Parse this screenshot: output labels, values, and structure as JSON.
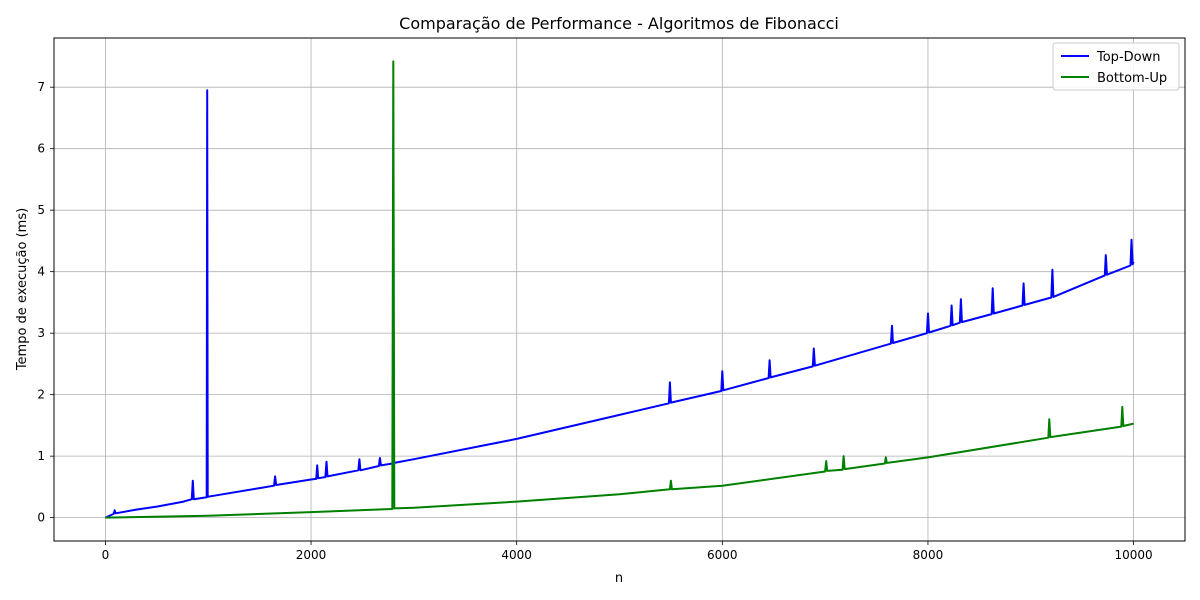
{
  "chart_data": {
    "type": "line",
    "title": "Comparação de Performance - Algoritmos de Fibonacci",
    "xlabel": "n",
    "ylabel": "Tempo de execução (ms)",
    "xlim": [
      -500,
      10500
    ],
    "ylim": [
      -0.38,
      7.8
    ],
    "x_ticks": [
      0,
      2000,
      4000,
      6000,
      8000,
      10000
    ],
    "x_tick_labels": [
      "0",
      "2000",
      "4000",
      "6000",
      "8000",
      "10000"
    ],
    "y_ticks": [
      0,
      1,
      2,
      3,
      4,
      5,
      6,
      7
    ],
    "y_tick_labels": [
      "0",
      "1",
      "2",
      "3",
      "4",
      "5",
      "6",
      "7"
    ],
    "grid": true,
    "legend_position": "top-right",
    "series": [
      {
        "name": "Top-Down",
        "color": "#0000ff",
        "x": [
          0,
          80,
          90,
          100,
          300,
          500,
          760,
          840,
          850,
          860,
          985,
          990,
          995,
          1000,
          1500,
          1640,
          1650,
          1660,
          2000,
          2050,
          2060,
          2070,
          2140,
          2150,
          2160,
          2460,
          2470,
          2480,
          2660,
          2670,
          2680,
          2790,
          2800,
          2810,
          3000,
          4000,
          5000,
          5480,
          5490,
          5500,
          5990,
          6000,
          6010,
          6450,
          6460,
          6470,
          6880,
          6890,
          6900,
          7640,
          7650,
          7660,
          7990,
          8000,
          8010,
          8220,
          8230,
          8240,
          8310,
          8320,
          8330,
          8620,
          8630,
          8640,
          8920,
          8930,
          8940,
          9200,
          9210,
          9220,
          9720,
          9730,
          9740,
          9970,
          9980,
          9990,
          10000
        ],
        "y": [
          0.0,
          0.06,
          0.12,
          0.07,
          0.13,
          0.18,
          0.26,
          0.3,
          0.6,
          0.3,
          0.33,
          6.95,
          0.34,
          0.34,
          0.48,
          0.52,
          0.67,
          0.53,
          0.62,
          0.63,
          0.85,
          0.64,
          0.66,
          0.91,
          0.67,
          0.77,
          0.95,
          0.77,
          0.84,
          0.97,
          0.85,
          0.88,
          0.98,
          0.89,
          0.95,
          1.28,
          1.67,
          1.86,
          2.2,
          1.87,
          2.06,
          2.38,
          2.07,
          2.27,
          2.56,
          2.28,
          2.46,
          2.75,
          2.47,
          2.83,
          3.12,
          2.84,
          3.0,
          3.32,
          3.01,
          3.12,
          3.45,
          3.13,
          3.17,
          3.55,
          3.18,
          3.31,
          3.73,
          3.32,
          3.45,
          3.81,
          3.46,
          3.58,
          4.03,
          3.59,
          3.94,
          4.27,
          3.95,
          4.1,
          4.52,
          4.12,
          4.16
        ]
      },
      {
        "name": "Bottom-Up",
        "color": "#008000",
        "x": [
          0,
          1000,
          2000,
          2790,
          2800,
          2810,
          3000,
          4000,
          5000,
          5490,
          5500,
          5510,
          6000,
          7000,
          7010,
          7020,
          7170,
          7180,
          7190,
          7580,
          7590,
          7600,
          8000,
          9170,
          9180,
          9190,
          9880,
          9890,
          9900,
          10000
        ],
        "y": [
          0.0,
          0.03,
          0.09,
          0.14,
          7.42,
          0.15,
          0.16,
          0.26,
          0.38,
          0.46,
          0.6,
          0.46,
          0.52,
          0.75,
          0.92,
          0.76,
          0.78,
          1.0,
          0.79,
          0.88,
          0.98,
          0.89,
          0.98,
          1.3,
          1.6,
          1.31,
          1.48,
          1.8,
          1.49,
          1.53
        ]
      }
    ]
  }
}
